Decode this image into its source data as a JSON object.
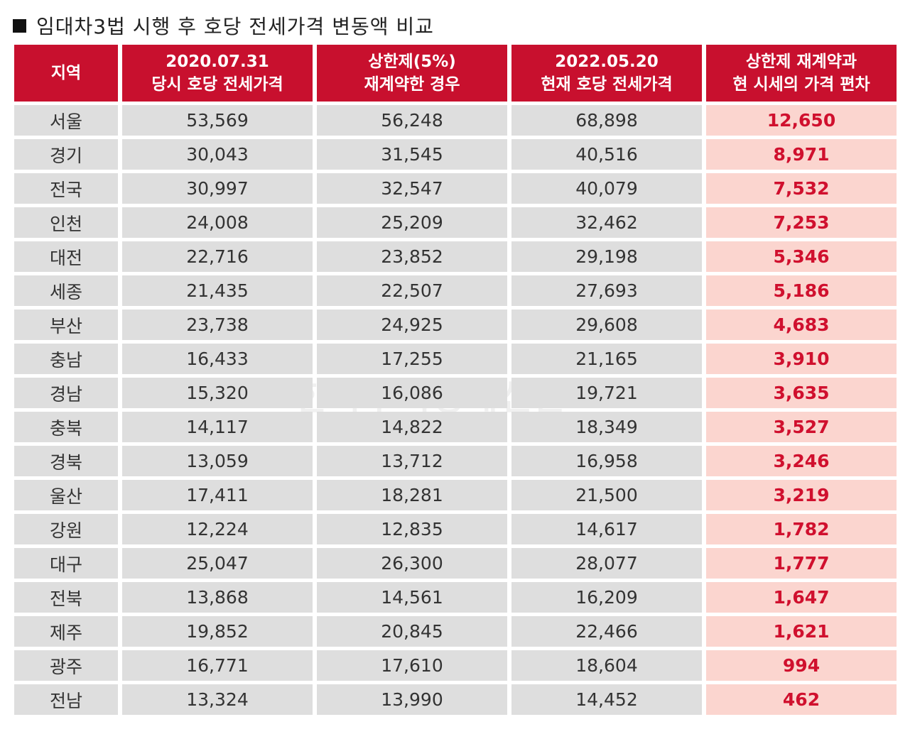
{
  "title": "임대차3법 시행 후 호당 전세가격 변동액 비교",
  "watermark": "한국주택경제신문",
  "colors": {
    "header_bg": "#c8102e",
    "cell_bg": "#dedede",
    "diff_bg": "#fbd5cf",
    "diff_text": "#d0102e"
  },
  "chart_data": {
    "type": "table",
    "columns": [
      [
        "지역"
      ],
      [
        "2020.07.31",
        "당시 호당 전세가격"
      ],
      [
        "상한제(5%)",
        "재계약한 경우"
      ],
      [
        "2022.05.20",
        "현재 호당 전세가격"
      ],
      [
        "상한제 재계약과",
        "현 시세의 가격 편차"
      ]
    ],
    "rows": [
      [
        "서울",
        "53,569",
        "56,248",
        "68,898",
        "12,650"
      ],
      [
        "경기",
        "30,043",
        "31,545",
        "40,516",
        "8,971"
      ],
      [
        "전국",
        "30,997",
        "32,547",
        "40,079",
        "7,532"
      ],
      [
        "인천",
        "24,008",
        "25,209",
        "32,462",
        "7,253"
      ],
      [
        "대전",
        "22,716",
        "23,852",
        "29,198",
        "5,346"
      ],
      [
        "세종",
        "21,435",
        "22,507",
        "27,693",
        "5,186"
      ],
      [
        "부산",
        "23,738",
        "24,925",
        "29,608",
        "4,683"
      ],
      [
        "충남",
        "16,433",
        "17,255",
        "21,165",
        "3,910"
      ],
      [
        "경남",
        "15,320",
        "16,086",
        "19,721",
        "3,635"
      ],
      [
        "충북",
        "14,117",
        "14,822",
        "18,349",
        "3,527"
      ],
      [
        "경북",
        "13,059",
        "13,712",
        "16,958",
        "3,246"
      ],
      [
        "울산",
        "17,411",
        "18,281",
        "21,500",
        "3,219"
      ],
      [
        "강원",
        "12,224",
        "12,835",
        "14,617",
        "1,782"
      ],
      [
        "대구",
        "25,047",
        "26,300",
        "28,077",
        "1,777"
      ],
      [
        "전북",
        "13,868",
        "14,561",
        "16,209",
        "1,647"
      ],
      [
        "제주",
        "19,852",
        "20,845",
        "22,466",
        "1,621"
      ],
      [
        "광주",
        "16,771",
        "17,610",
        "18,604",
        "994"
      ],
      [
        "전남",
        "13,324",
        "13,990",
        "14,452",
        "462"
      ]
    ]
  }
}
